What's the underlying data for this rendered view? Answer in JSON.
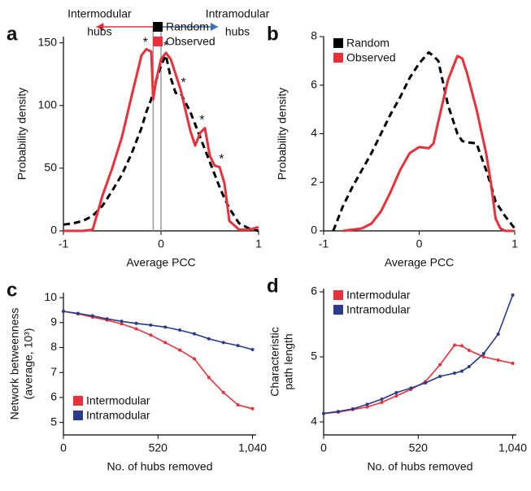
{
  "chart_data": [
    {
      "type": "line",
      "panel_label": "a",
      "xlabel": "Average PCC",
      "ylabel": [
        "Probability density"
      ],
      "x": [
        -1,
        -0.9,
        -0.8,
        -0.7,
        -0.6,
        -0.5,
        -0.4,
        -0.3,
        -0.2,
        -0.15,
        -0.1,
        -0.08,
        -0.05,
        0,
        0.05,
        0.1,
        0.15,
        0.2,
        0.3,
        0.35,
        0.4,
        0.45,
        0.5,
        0.55,
        0.6,
        0.65,
        0.7,
        0.8,
        0.9,
        1
      ],
      "series": [
        {
          "name": "Random",
          "color": "#000000",
          "dash": true,
          "values": [
            5,
            6,
            8,
            12,
            20,
            32,
            45,
            62,
            82,
            95,
            105,
            112,
            120,
            132,
            140,
            122,
            110,
            110,
            95,
            85,
            75,
            65,
            55,
            45,
            35,
            26,
            18,
            6,
            2,
            0
          ]
        },
        {
          "name": "Observed",
          "color": "#e8313a",
          "dash": false,
          "values": [
            0,
            0,
            0,
            1,
            28,
            50,
            75,
            108,
            140,
            145,
            143,
            105,
            120,
            137,
            142,
            137,
            125,
            113,
            80,
            68,
            78,
            82,
            60,
            52,
            51,
            38,
            8,
            1,
            1,
            3
          ]
        }
      ],
      "xlim": [
        -1,
        1
      ],
      "xticks": [
        -1,
        0,
        1
      ],
      "ylim": [
        0,
        155
      ],
      "yticks": [
        0,
        50,
        100,
        150
      ],
      "legend": "top-right",
      "markers": false,
      "vlines": [
        -0.08,
        0
      ],
      "hub_labels": [
        {
          "text": [
            "Intermodular",
            "hubs"
          ],
          "color": "#e8313a",
          "direction": "left"
        },
        {
          "text": [
            "Intramodular",
            "hubs"
          ],
          "color": "#3a6fc0",
          "direction": "right"
        }
      ],
      "annotations": [
        {
          "text": "*",
          "x": -0.16,
          "y": 146,
          "color": "#e8313a"
        },
        {
          "text": "*",
          "x": 0.05,
          "y": 143,
          "color": "#e8313a"
        },
        {
          "text": "*",
          "x": 0.23,
          "y": 114,
          "color": "#000000"
        },
        {
          "text": "*",
          "x": 0.42,
          "y": 84,
          "color": "#e8313a"
        },
        {
          "text": "*",
          "x": 0.62,
          "y": 53,
          "color": "#e8313a"
        }
      ]
    },
    {
      "type": "line",
      "panel_label": "b",
      "xlabel": "Average PCC",
      "ylabel": [
        "Probability density"
      ],
      "x": [
        -1,
        -0.9,
        -0.8,
        -0.7,
        -0.6,
        -0.5,
        -0.4,
        -0.3,
        -0.2,
        -0.1,
        0,
        0.1,
        0.15,
        0.2,
        0.3,
        0.4,
        0.45,
        0.5,
        0.6,
        0.7,
        0.75,
        0.8,
        0.85,
        0.9,
        1
      ],
      "series": [
        {
          "name": "Random",
          "color": "#000000",
          "dash": true,
          "values": [
            null,
            0,
            1.0,
            1.8,
            2.5,
            3.2,
            4.0,
            4.8,
            5.5,
            6.3,
            6.9,
            7.35,
            7.2,
            7.0,
            5.2,
            4.0,
            3.7,
            3.65,
            3.6,
            2.5,
            1.9,
            1.2,
            0.9,
            0.6,
            0.1
          ]
        },
        {
          "name": "Observed",
          "color": "#e8313a",
          "dash": false,
          "values": [
            null,
            null,
            0,
            0.05,
            0.1,
            0.3,
            0.8,
            1.6,
            2.5,
            3.2,
            3.45,
            3.4,
            3.6,
            4.5,
            6.2,
            7.2,
            7.1,
            6.5,
            5.0,
            3.2,
            2.0,
            0.5,
            0.1,
            0,
            0
          ]
        }
      ],
      "xlim": [
        -1,
        1
      ],
      "xticks": [
        -1,
        0,
        1
      ],
      "ylim": [
        0,
        8
      ],
      "yticks": [
        0,
        2,
        4,
        6,
        8
      ],
      "legend": "top-left",
      "markers": false
    },
    {
      "type": "line",
      "panel_label": "c",
      "xlabel": "No. of hubs removed",
      "ylabel": [
        "Network betweenness",
        "(average, 10³)"
      ],
      "x": [
        0,
        80,
        160,
        240,
        320,
        400,
        480,
        560,
        640,
        720,
        800,
        880,
        960,
        1040
      ],
      "series": [
        {
          "name": "Intermodular",
          "color": "#e8313a",
          "dash": false,
          "values": [
            9.45,
            9.35,
            9.22,
            9.1,
            8.95,
            8.75,
            8.5,
            8.2,
            7.9,
            7.55,
            6.8,
            6.2,
            5.7,
            5.55
          ]
        },
        {
          "name": "Intramodular",
          "color": "#2a3a8c",
          "dash": false,
          "values": [
            9.45,
            9.37,
            9.27,
            9.15,
            9.05,
            8.97,
            8.9,
            8.82,
            8.7,
            8.55,
            8.35,
            8.2,
            8.08,
            7.92
          ]
        }
      ],
      "xlim": [
        0,
        1060
      ],
      "xticks": [
        0,
        520,
        {
          "value": 1040,
          "label": "1,040"
        }
      ],
      "ylim": [
        4.5,
        10.2
      ],
      "yticks": [
        5,
        6,
        7,
        8,
        9,
        10
      ],
      "legend": "bottom-left",
      "markers": true
    },
    {
      "type": "line",
      "panel_label": "d",
      "xlabel": "No. of hubs removed",
      "ylabel": [
        "Characteristic",
        "path length"
      ],
      "x": [
        0,
        80,
        160,
        240,
        320,
        400,
        480,
        560,
        640,
        720,
        760,
        800,
        880,
        960,
        1040
      ],
      "series": [
        {
          "name": "Intermodular",
          "color": "#e8313a",
          "dash": false,
          "values": [
            4.13,
            4.15,
            4.19,
            4.23,
            4.3,
            4.4,
            4.5,
            4.62,
            4.88,
            5.18,
            5.17,
            5.1,
            5.0,
            4.95,
            4.9
          ]
        },
        {
          "name": "Intramodular",
          "color": "#2a3a8c",
          "dash": false,
          "values": [
            4.13,
            4.16,
            4.2,
            4.27,
            4.35,
            4.45,
            4.52,
            4.6,
            4.7,
            4.75,
            4.78,
            4.85,
            5.05,
            5.35,
            5.95
          ]
        }
      ],
      "xlim": [
        0,
        1060
      ],
      "xticks": [
        0,
        520,
        {
          "value": 1040,
          "label": "1,040"
        }
      ],
      "ylim": [
        3.8,
        6.05
      ],
      "yticks": [
        4,
        5,
        6
      ],
      "legend": "top-left",
      "markers": true
    }
  ]
}
